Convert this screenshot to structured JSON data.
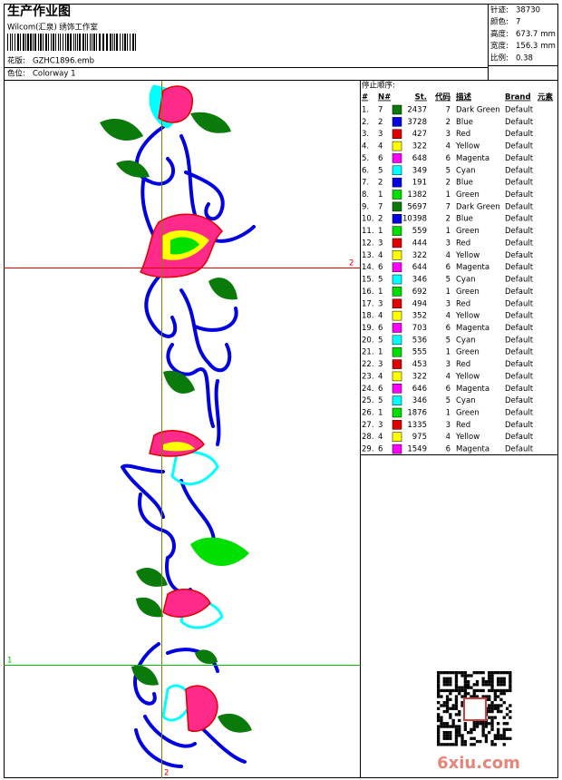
{
  "header": {
    "title": "生产作业图",
    "subtitle": "Wilcom(汇泉) 绣饰工作室",
    "design_label": "花版:",
    "design": "GZHC1896.emb",
    "colorway_label": "色位:",
    "colorway": "Colorway 1"
  },
  "info": [
    {
      "label": "针迹:",
      "value": 38730
    },
    {
      "label": "颜色:",
      "value": 7
    },
    {
      "label": "高度:",
      "value": 673.7,
      "unit": "mm"
    },
    {
      "label": "宽度:",
      "value": 156.3,
      "unit": "mm"
    },
    {
      "label": "比例:",
      "value": 0.38
    }
  ],
  "guides": {
    "horizontal_red": "2",
    "horizontal_green": "1",
    "vertical": "2"
  },
  "table": {
    "title": "停止顺序:",
    "columns": [
      "#",
      "N#",
      "St.",
      "代码",
      "描述",
      "Brand",
      "元素"
    ],
    "rows": [
      [
        "1.",
        7,
        "#0a7a0a",
        2437,
        7,
        "Dark Green",
        "Default"
      ],
      [
        "2.",
        2,
        "#0000e0",
        3728,
        2,
        "Blue",
        "Default"
      ],
      [
        "3.",
        3,
        "#e00000",
        427,
        3,
        "Red",
        "Default"
      ],
      [
        "4.",
        4,
        "#ffff00",
        322,
        4,
        "Yellow",
        "Default"
      ],
      [
        "5.",
        6,
        "#ff00ff",
        648,
        6,
        "Magenta",
        "Default"
      ],
      [
        "6.",
        5,
        "#00ffff",
        349,
        5,
        "Cyan",
        "Default"
      ],
      [
        "7.",
        2,
        "#0000e0",
        191,
        2,
        "Blue",
        "Default"
      ],
      [
        "8.",
        1,
        "#00e000",
        1382,
        1,
        "Green",
        "Default"
      ],
      [
        "9.",
        7,
        "#0a7a0a",
        5697,
        7,
        "Dark Green",
        "Default"
      ],
      [
        "10.",
        2,
        "#0000e0",
        10398,
        2,
        "Blue",
        "Default"
      ],
      [
        "11.",
        1,
        "#00e000",
        559,
        1,
        "Green",
        "Default"
      ],
      [
        "12.",
        3,
        "#e00000",
        444,
        3,
        "Red",
        "Default"
      ],
      [
        "13.",
        4,
        "#ffff00",
        322,
        4,
        "Yellow",
        "Default"
      ],
      [
        "14.",
        6,
        "#ff00ff",
        644,
        6,
        "Magenta",
        "Default"
      ],
      [
        "15.",
        5,
        "#00ffff",
        346,
        5,
        "Cyan",
        "Default"
      ],
      [
        "16.",
        1,
        "#00e000",
        692,
        1,
        "Green",
        "Default"
      ],
      [
        "17.",
        3,
        "#e00000",
        494,
        3,
        "Red",
        "Default"
      ],
      [
        "18.",
        4,
        "#ffff00",
        352,
        4,
        "Yellow",
        "Default"
      ],
      [
        "19.",
        6,
        "#ff00ff",
        703,
        6,
        "Magenta",
        "Default"
      ],
      [
        "20.",
        5,
        "#00ffff",
        536,
        5,
        "Cyan",
        "Default"
      ],
      [
        "21.",
        1,
        "#00e000",
        555,
        1,
        "Green",
        "Default"
      ],
      [
        "22.",
        3,
        "#e00000",
        453,
        3,
        "Red",
        "Default"
      ],
      [
        "23.",
        4,
        "#ffff00",
        322,
        4,
        "Yellow",
        "Default"
      ],
      [
        "24.",
        6,
        "#ff00ff",
        646,
        6,
        "Magenta",
        "Default"
      ],
      [
        "25.",
        5,
        "#00ffff",
        346,
        5,
        "Cyan",
        "Default"
      ],
      [
        "26.",
        1,
        "#00e000",
        1876,
        1,
        "Green",
        "Default"
      ],
      [
        "27.",
        3,
        "#e00000",
        1335,
        3,
        "Red",
        "Default"
      ],
      [
        "28.",
        4,
        "#ffff00",
        975,
        4,
        "Yellow",
        "Default"
      ],
      [
        "29.",
        6,
        "#ff00ff",
        1549,
        6,
        "Magenta",
        "Default"
      ]
    ]
  },
  "watermark": "6xiu.com"
}
